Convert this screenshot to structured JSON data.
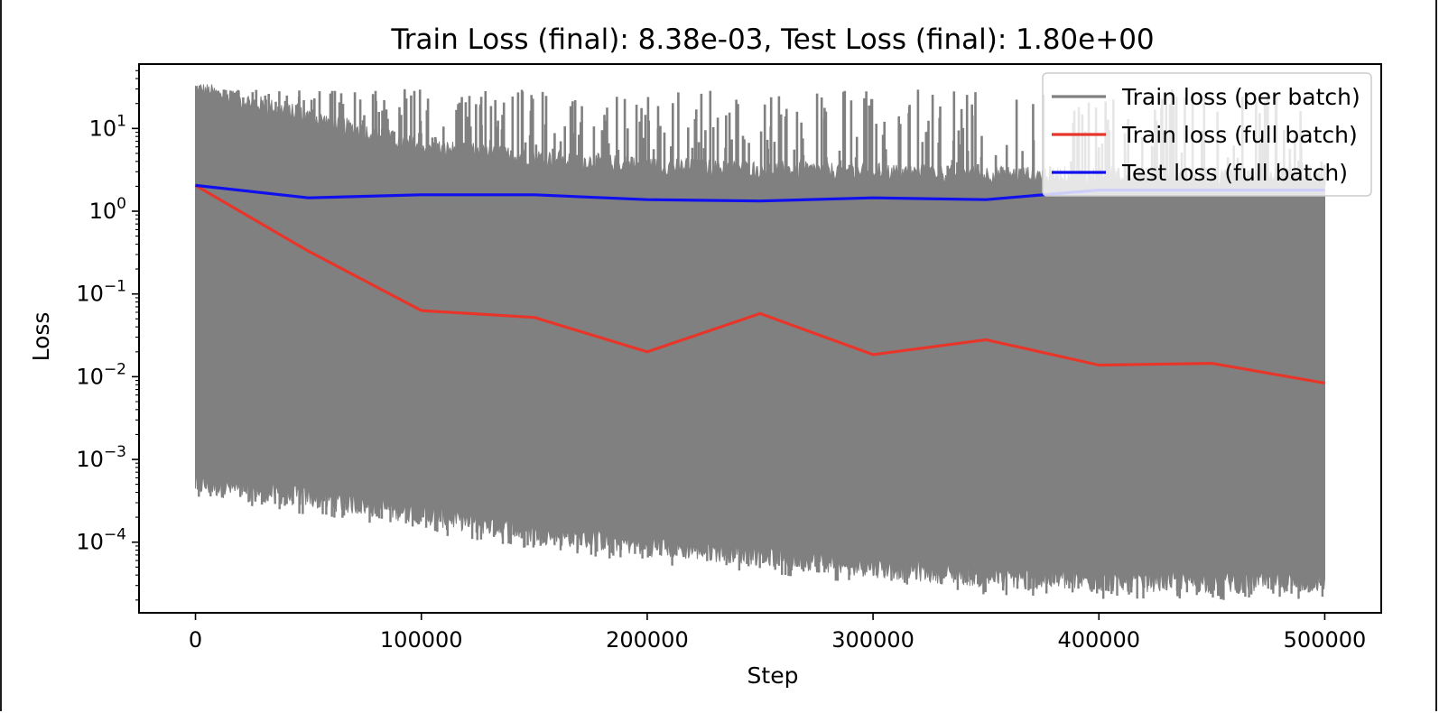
{
  "chart_data": {
    "type": "line",
    "title": "Train Loss (final): 8.38e-03, Test Loss (final): 1.80e+00",
    "xlabel": "Step",
    "ylabel": "Loss",
    "xlim": [
      -25000,
      525000
    ],
    "ylim": [
      1.4e-05,
      60
    ],
    "yscale": "log",
    "grid": false,
    "legend_position": "top-right",
    "x_ticks": [
      0,
      100000,
      200000,
      300000,
      400000,
      500000
    ],
    "x_tick_labels": [
      "0",
      "100000",
      "200000",
      "300000",
      "400000",
      "500000"
    ],
    "y_ticks": [
      0.0001,
      0.001,
      0.01,
      0.1,
      1,
      10
    ],
    "y_tick_labels": [
      {
        "base": "10",
        "exp": "−4"
      },
      {
        "base": "10",
        "exp": "−3"
      },
      {
        "base": "10",
        "exp": "−2"
      },
      {
        "base": "10",
        "exp": "−1"
      },
      {
        "base": "10",
        "exp": "0"
      },
      {
        "base": "10",
        "exp": "1"
      }
    ],
    "series": [
      {
        "name": "Train loss (per batch)",
        "color": "#808080",
        "style": "dense band",
        "x_range": [
          0,
          500000
        ],
        "upper_envelope": [
          [
            0,
            30
          ],
          [
            50000,
            14
          ],
          [
            100000,
            6
          ],
          [
            150000,
            4.5
          ],
          [
            200000,
            3.5
          ],
          [
            250000,
            3.2
          ],
          [
            300000,
            3
          ],
          [
            350000,
            2.8
          ],
          [
            400000,
            2.7
          ],
          [
            450000,
            2.6
          ],
          [
            500000,
            2.5
          ]
        ],
        "lower_envelope": [
          [
            0,
            0.0005
          ],
          [
            50000,
            0.00035
          ],
          [
            100000,
            0.00022
          ],
          [
            150000,
            0.00013
          ],
          [
            200000,
            9e-05
          ],
          [
            250000,
            7e-05
          ],
          [
            300000,
            5e-05
          ],
          [
            350000,
            3.8e-05
          ],
          [
            400000,
            3.4e-05
          ],
          [
            450000,
            3.3e-05
          ],
          [
            500000,
            3.3e-05
          ]
        ],
        "spike_peak": 30
      },
      {
        "name": "Train loss (full batch)",
        "color": "#e8352a",
        "x": [
          0,
          50000,
          100000,
          150000,
          200000,
          250000,
          300000,
          350000,
          400000,
          450000,
          500000
        ],
        "y": [
          2.05,
          0.33,
          0.063,
          0.052,
          0.02,
          0.058,
          0.0185,
          0.028,
          0.0138,
          0.0145,
          0.00838
        ]
      },
      {
        "name": "Test loss (full batch)",
        "color": "#1010ee",
        "x": [
          0,
          50000,
          100000,
          150000,
          200000,
          250000,
          300000,
          350000,
          400000,
          450000,
          500000
        ],
        "y": [
          2.05,
          1.45,
          1.58,
          1.58,
          1.38,
          1.33,
          1.45,
          1.38,
          1.8,
          1.8,
          1.8
        ]
      }
    ]
  }
}
